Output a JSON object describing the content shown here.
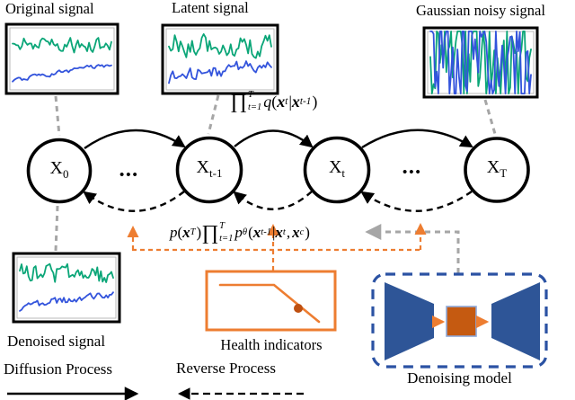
{
  "plots": {
    "original": {
      "label": "Original signal"
    },
    "latent": {
      "label": "Latent signal"
    },
    "gaussian": {
      "label": "Gaussian noisy signal"
    },
    "denoised": {
      "label": "Denoised signal"
    }
  },
  "nodes": {
    "x0": {
      "base": "X",
      "sub": "0"
    },
    "xtm1": {
      "base": "X",
      "sub": "t-1"
    },
    "xt": {
      "base": "X",
      "sub": "t"
    },
    "xT": {
      "base": "X",
      "sub": "T"
    },
    "dots": "•••"
  },
  "formulas": {
    "forward": {
      "prod": "∏",
      "sup": "T",
      "sub": "t=1",
      "q": "q",
      "open": "(",
      "x1": "x",
      "x1_sub": "t",
      "bar": "|",
      "x2": "x",
      "x2_sub": "t-1",
      "close": ")"
    },
    "reverse": {
      "p1": "p",
      "open1": "(",
      "xT": "x",
      "xT_sub": "T",
      "close1": ")",
      "prod": "∏",
      "sup": "T",
      "sub": "t=1",
      "p2": "p",
      "p2_sub": "θ",
      "open2": "(",
      "x1": "x",
      "x1_sub": "t-1",
      "bar": "|",
      "x2": "x",
      "x2_sub": "t",
      "comma": ",",
      "x3": "x",
      "x3_sub": "c",
      "close2": ")"
    }
  },
  "health": {
    "label": "Health indicators"
  },
  "model": {
    "label": "Denoising model"
  },
  "legend": {
    "diffusion": "Diffusion Process",
    "reverse": "Reverse Process"
  },
  "colors": {
    "signal_green": "#0ba678",
    "signal_blue": "#3354dc",
    "orange": "#ED7D31",
    "dark_orange": "#C55A11",
    "health_dot": "#BF5010",
    "model_blue": "#2E5597",
    "model_border_blue": "#2B52A3",
    "square_border": "#8EA9DB",
    "connector_gray": "#A6A6A6",
    "line_black": "#000000"
  },
  "signals": {
    "original": {
      "green": {
        "seed": 11,
        "n": 54,
        "base": 0.3,
        "amp": 0.16,
        "trend": 0.05,
        "smooth": 0.35
      },
      "blue": {
        "seed": 22,
        "n": 54,
        "base": 0.7,
        "amp": 0.07,
        "trend": -0.22,
        "smooth": 0.55
      }
    },
    "latent": {
      "green": {
        "seed": 33,
        "n": 54,
        "base": 0.3,
        "amp": 0.22,
        "trend": 0.02,
        "smooth": 0.25
      },
      "blue": {
        "seed": 44,
        "n": 54,
        "base": 0.66,
        "amp": 0.13,
        "trend": -0.2,
        "smooth": 0.35
      }
    },
    "gaussian": {
      "green": {
        "seed": 55,
        "n": 64,
        "base": 0.5,
        "amp": 0.75,
        "trend": 0.0,
        "smooth": 0.0
      },
      "blue": {
        "seed": 66,
        "n": 64,
        "base": 0.5,
        "amp": 0.75,
        "trend": 0.0,
        "smooth": 0.0
      }
    },
    "denoised": {
      "green": {
        "seed": 77,
        "n": 54,
        "base": 0.31,
        "amp": 0.18,
        "trend": 0.06,
        "smooth": 0.3
      },
      "blue": {
        "seed": 88,
        "n": 54,
        "base": 0.68,
        "amp": 0.09,
        "trend": -0.2,
        "smooth": 0.45
      }
    }
  }
}
